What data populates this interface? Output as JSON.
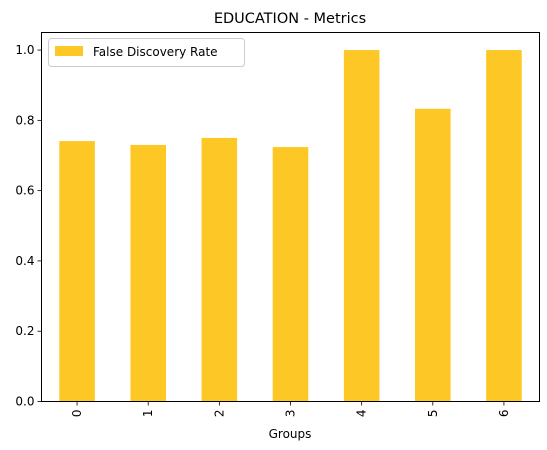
{
  "chart_data": {
    "type": "bar",
    "title": "EDUCATION - Metrics",
    "xlabel": "Groups",
    "ylabel": "",
    "categories": [
      "0",
      "1",
      "2",
      "3",
      "4",
      "5",
      "6"
    ],
    "series": [
      {
        "name": "False Discovery Rate",
        "values": [
          0.741,
          0.73,
          0.75,
          0.724,
          1.0,
          0.833,
          1.0
        ],
        "color": "#fdc825"
      }
    ],
    "ylim": [
      0,
      1.05
    ],
    "yticks": [
      "0.0",
      "0.2",
      "0.4",
      "0.6",
      "0.8",
      "1.0"
    ],
    "grid": false,
    "legend_position": "top-left",
    "xtick_rotation": 90
  }
}
